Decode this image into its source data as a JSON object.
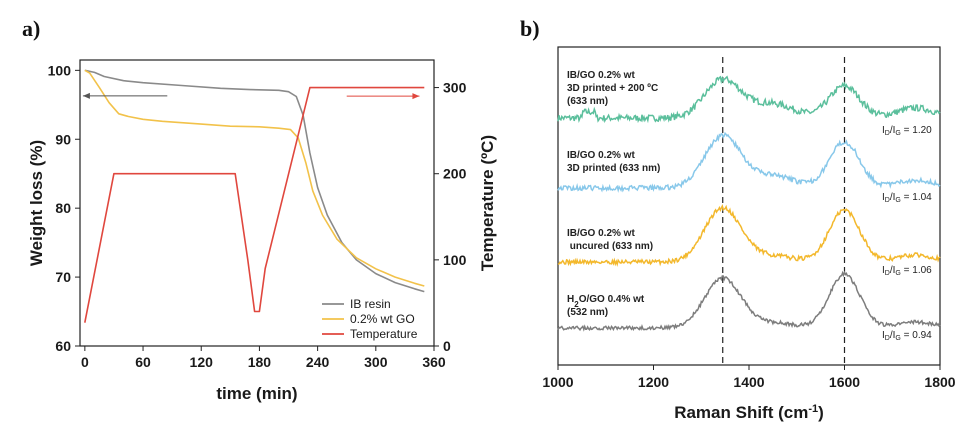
{
  "panels": {
    "a": {
      "label": "a)"
    },
    "b": {
      "label": "b)"
    }
  },
  "colors": {
    "ib_resin": "#8a8a8a",
    "go_02": "#f2c24a",
    "temperature": "#e0473e",
    "s1": "#5bbf9c",
    "s2": "#88c8ea",
    "s3": "#f3b82c",
    "s4": "#7d7d7d"
  },
  "chart_data": [
    {
      "type": "line",
      "xlabel": "time (min)",
      "ylabel": "Weight loss (%)",
      "y2label": "Temperature (ºC)",
      "xlim": [
        -5,
        360
      ],
      "ylim": [
        60,
        101.5
      ],
      "y2lim": [
        0,
        332
      ],
      "xticks": [
        0,
        60,
        120,
        180,
        240,
        300,
        360
      ],
      "yticks": [
        60,
        70,
        80,
        90,
        100
      ],
      "y2ticks": [
        0,
        100,
        200,
        300
      ],
      "legend_position": "bottom-right",
      "series": [
        {
          "name": "IB resin",
          "axis": "left",
          "points": [
            [
              0,
              100
            ],
            [
              10,
              99.7
            ],
            [
              20,
              99.1
            ],
            [
              40,
              98.5
            ],
            [
              60,
              98.2
            ],
            [
              100,
              97.8
            ],
            [
              140,
              97.4
            ],
            [
              170,
              97.2
            ],
            [
              200,
              97.1
            ],
            [
              210,
              96.9
            ],
            [
              218,
              96.2
            ],
            [
              225,
              93.5
            ],
            [
              232,
              88
            ],
            [
              240,
              83
            ],
            [
              250,
              79
            ],
            [
              265,
              75
            ],
            [
              280,
              72.5
            ],
            [
              300,
              70.5
            ],
            [
              320,
              69.2
            ],
            [
              340,
              68.3
            ],
            [
              350,
              67.9
            ]
          ]
        },
        {
          "name": "0.2% wt GO",
          "axis": "left",
          "points": [
            [
              0,
              100
            ],
            [
              5,
              99.6
            ],
            [
              15,
              97.5
            ],
            [
              25,
              95.3
            ],
            [
              35,
              93.7
            ],
            [
              45,
              93.3
            ],
            [
              60,
              92.9
            ],
            [
              80,
              92.6
            ],
            [
              120,
              92.2
            ],
            [
              150,
              91.9
            ],
            [
              180,
              91.8
            ],
            [
              200,
              91.6
            ],
            [
              212,
              91.4
            ],
            [
              220,
              90.2
            ],
            [
              228,
              86.5
            ],
            [
              235,
              82.5
            ],
            [
              245,
              79
            ],
            [
              260,
              75.5
            ],
            [
              280,
              72.8
            ],
            [
              300,
              71.2
            ],
            [
              320,
              70
            ],
            [
              340,
              69.1
            ],
            [
              350,
              68.7
            ]
          ]
        },
        {
          "name": "Temperature",
          "axis": "right",
          "points": [
            [
              0,
              27
            ],
            [
              30,
              200
            ],
            [
              155,
              200
            ],
            [
              168,
              100
            ],
            [
              175,
              40
            ],
            [
              180,
              40
            ],
            [
              186,
              90
            ],
            [
              232,
              300
            ],
            [
              350,
              300
            ]
          ]
        }
      ],
      "arrows": [
        {
          "direction": "left",
          "axis": "left",
          "y": 96.3,
          "x_from": 85,
          "x_to": -2
        },
        {
          "direction": "right",
          "axis": "right",
          "y": 290,
          "x_from": 270,
          "x_to": 345
        }
      ]
    },
    {
      "type": "line",
      "xlabel": "Raman Shift (cm",
      "xlabel_sup": "-1",
      "xlabel_tail": ")",
      "xlim": [
        1000,
        1800
      ],
      "xticks": [
        1000,
        1200,
        1400,
        1600,
        1800
      ],
      "reference_lines": [
        1345,
        1600
      ],
      "spectra": [
        {
          "label_lines": [
            "IB/GO 0.2% wt",
            "3D printed + 200 ºC",
            "(633 nm)"
          ],
          "ratio_value": "= 1.20",
          "offset": 0
        },
        {
          "label_lines": [
            "IB/GO 0.2% wt",
            "3D printed (633 nm)"
          ],
          "ratio_value": "= 1.04",
          "offset": 1
        },
        {
          "label_lines": [
            "IB/GO 0.2% wt",
            " uncured (633 nm)"
          ],
          "ratio_value": "= 1.06",
          "offset": 2
        },
        {
          "label_lines_html": true,
          "label_lines": [
            "H2O/GO 0.4% wt",
            "(532 nm)"
          ],
          "ratio_value": "= 0.94",
          "offset": 3
        }
      ],
      "ratio_text": {
        "main": "I",
        "sub_d": "D",
        "slash": "/I",
        "sub_g": "G"
      }
    }
  ]
}
